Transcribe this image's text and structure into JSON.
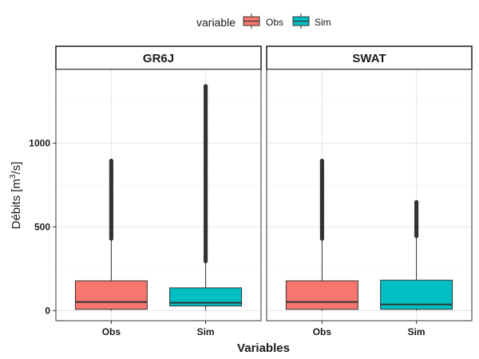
{
  "chart_data": {
    "type": "box",
    "legend": {
      "title": "variable",
      "position": "top",
      "entries": [
        {
          "label": "Obs",
          "color": "#F8766D"
        },
        {
          "label": "Sim",
          "color": "#00BFC4"
        }
      ]
    },
    "xlabel": "Variables",
    "ylabel_main": "Débits [m",
    "ylabel_sup": "3",
    "ylabel_tail": "/s]",
    "categories": [
      "Obs",
      "Sim"
    ],
    "y_ticks": [
      0,
      500,
      1000
    ],
    "ylim": [
      -60,
      1440
    ],
    "grid": true,
    "panels": [
      {
        "title": "GR6J",
        "boxes": [
          {
            "category": "Obs",
            "q1": 8,
            "median": 52,
            "q3": 178,
            "whisker_low": 0,
            "whisker_high": 428,
            "outliers_from": 430,
            "outliers_to": 895
          },
          {
            "category": "Sim",
            "q1": 28,
            "median": 47,
            "q3": 136,
            "whisker_low": 0,
            "whisker_high": 292,
            "outliers_from": 295,
            "outliers_to": 1340
          }
        ]
      },
      {
        "title": "SWAT",
        "boxes": [
          {
            "category": "Obs",
            "q1": 8,
            "median": 52,
            "q3": 178,
            "whisker_low": 0,
            "whisker_high": 428,
            "outliers_from": 430,
            "outliers_to": 895
          },
          {
            "category": "Sim",
            "q1": 8,
            "median": 37,
            "q3": 182,
            "whisker_low": 0,
            "whisker_high": 442,
            "outliers_from": 445,
            "outliers_to": 648
          }
        ]
      }
    ]
  }
}
